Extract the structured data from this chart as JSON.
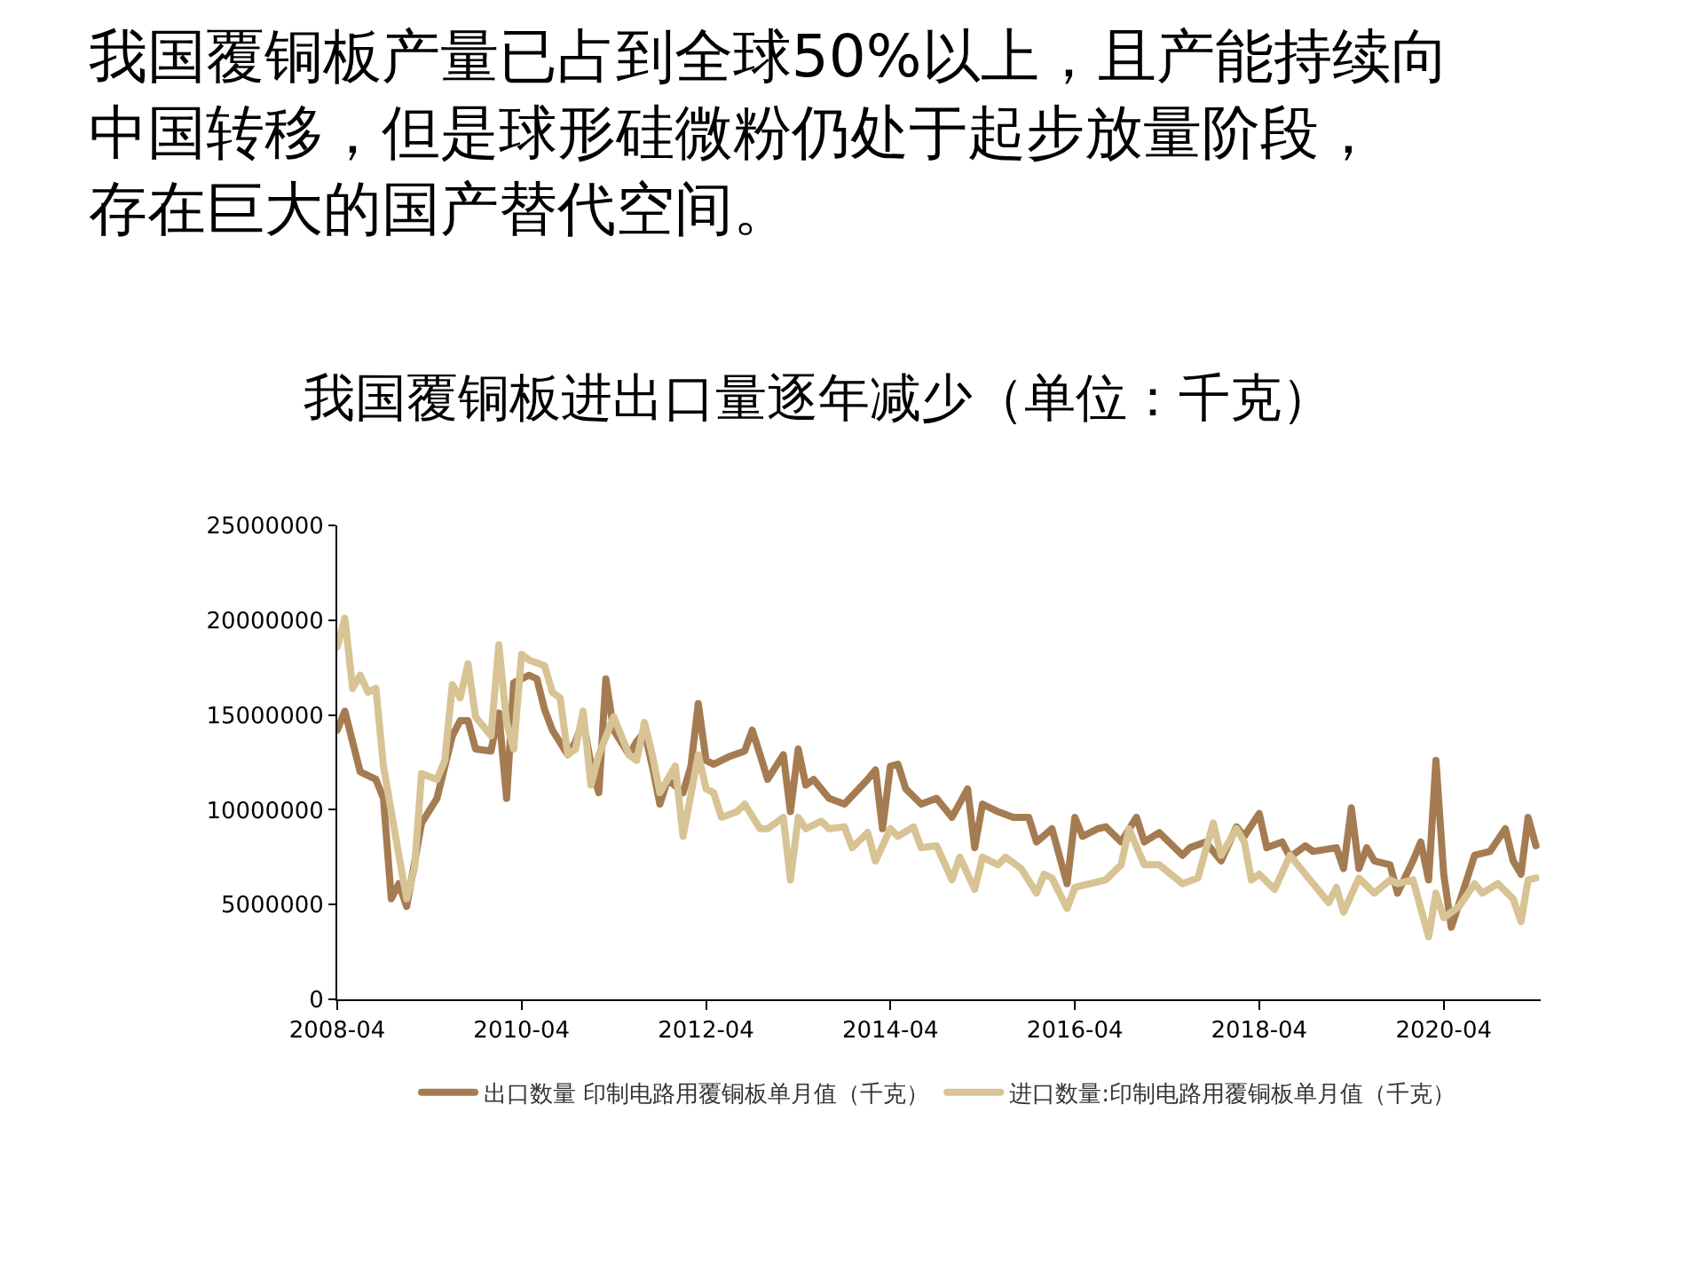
{
  "chart_data": {
    "type": "line",
    "title": "我国覆铜板产量已占到全球50%以上，且产能持续向中国转移，但是球形硅微粉仍处于起步放量阶段，存在巨大的国产替代空间。",
    "subtitle": "我国覆铜板进出口量逐年减少（单位：千克）",
    "series": [
      {
        "name": "出口数量 印制电路用覆铜板单月值（千克）",
        "color": "#a57c52",
        "x": [
          "2008-04",
          "2008-05",
          "2008-07",
          "2008-09",
          "2008-10",
          "2008-11",
          "2008-12",
          "2009-01",
          "2009-03",
          "2009-05",
          "2009-07",
          "2009-08",
          "2009-09",
          "2009-10",
          "2009-12",
          "2010-01",
          "2010-02",
          "2010-03",
          "2010-05",
          "2010-06",
          "2010-07",
          "2010-08",
          "2010-10",
          "2010-11",
          "2010-12",
          "2011-01",
          "2011-02",
          "2011-03",
          "2011-04",
          "2011-06",
          "2011-07",
          "2011-08",
          "2011-09",
          "2011-10",
          "2011-11",
          "2012-01",
          "2012-02",
          "2012-03",
          "2012-04",
          "2012-05",
          "2012-07",
          "2012-09",
          "2012-10",
          "2012-11",
          "2012-12",
          "2013-02",
          "2013-03",
          "2013-04",
          "2013-05",
          "2013-06",
          "2013-08",
          "2013-10",
          "2014-01",
          "2014-02",
          "2014-03",
          "2014-04",
          "2014-05",
          "2014-06",
          "2014-08",
          "2014-10",
          "2014-12",
          "2015-02",
          "2015-03",
          "2015-04",
          "2015-06",
          "2015-08",
          "2015-10",
          "2015-11",
          "2016-01",
          "2016-03",
          "2016-04",
          "2016-05",
          "2016-07",
          "2016-08",
          "2016-10",
          "2016-12",
          "2017-01",
          "2017-03",
          "2017-06",
          "2017-07",
          "2017-09",
          "2017-11",
          "2018-01",
          "2018-02",
          "2018-04",
          "2018-05",
          "2018-07",
          "2018-08",
          "2018-10",
          "2018-11",
          "2019-02",
          "2019-03",
          "2019-04",
          "2019-05",
          "2019-06",
          "2019-07",
          "2019-09",
          "2019-10",
          "2019-12",
          "2020-01",
          "2020-02",
          "2020-03",
          "2020-04",
          "2020-05",
          "2020-07",
          "2020-08",
          "2020-10",
          "2020-12",
          "2021-01",
          "2021-02",
          "2021-03",
          "2021-04"
        ],
        "values": [
          14200000,
          15200000,
          12000000,
          11600000,
          10600000,
          5300000,
          6100000,
          4900000,
          9300000,
          10600000,
          13900000,
          14700000,
          14700000,
          13200000,
          13100000,
          15100000,
          10600000,
          16700000,
          17100000,
          16900000,
          15300000,
          14200000,
          12900000,
          13600000,
          14700000,
          12400000,
          10900000,
          16900000,
          14200000,
          12900000,
          13600000,
          14100000,
          12300000,
          10300000,
          11600000,
          10900000,
          12300000,
          15600000,
          12600000,
          12400000,
          12800000,
          13100000,
          14200000,
          12900000,
          11600000,
          12900000,
          9900000,
          13200000,
          11300000,
          11600000,
          10600000,
          10300000,
          11600000,
          12100000,
          9000000,
          12300000,
          12400000,
          11100000,
          10300000,
          10600000,
          9600000,
          11100000,
          8000000,
          10300000,
          9900000,
          9600000,
          9600000,
          8300000,
          9000000,
          6100000,
          9600000,
          8600000,
          9000000,
          9100000,
          8300000,
          9600000,
          8300000,
          8800000,
          7600000,
          8000000,
          8300000,
          7300000,
          9100000,
          8600000,
          9800000,
          8000000,
          8300000,
          7500000,
          8100000,
          7800000,
          8000000,
          6900000,
          10100000,
          6900000,
          8000000,
          7300000,
          7100000,
          5600000,
          7300000,
          8300000,
          6300000,
          12600000,
          6600000,
          3800000,
          6300000,
          7600000,
          7800000,
          9000000,
          7300000,
          6600000,
          9600000,
          8100000
        ]
      },
      {
        "name": "进口数量:印制电路用覆铜板单月值（千克）",
        "color": "#d8c394",
        "x": [
          "2008-04",
          "2008-05",
          "2008-06",
          "2008-07",
          "2008-08",
          "2008-09",
          "2008-10",
          "2008-12",
          "2009-01",
          "2009-02",
          "2009-03",
          "2009-05",
          "2009-06",
          "2009-07",
          "2009-08",
          "2009-09",
          "2009-10",
          "2009-12",
          "2010-01",
          "2010-02",
          "2010-03",
          "2010-04",
          "2010-05",
          "2010-07",
          "2010-08",
          "2010-09",
          "2010-10",
          "2010-11",
          "2010-12",
          "2011-01",
          "2011-02",
          "2011-04",
          "2011-06",
          "2011-07",
          "2011-08",
          "2011-09",
          "2011-10",
          "2011-12",
          "2012-01",
          "2012-03",
          "2012-04",
          "2012-05",
          "2012-06",
          "2012-08",
          "2012-09",
          "2012-11",
          "2012-12",
          "2013-02",
          "2013-03",
          "2013-04",
          "2013-05",
          "2013-07",
          "2013-08",
          "2013-10",
          "2013-11",
          "2014-01",
          "2014-02",
          "2014-04",
          "2014-05",
          "2014-07",
          "2014-08",
          "2014-10",
          "2014-12",
          "2015-01",
          "2015-03",
          "2015-04",
          "2015-06",
          "2015-07",
          "2015-09",
          "2015-11",
          "2015-12",
          "2016-01",
          "2016-03",
          "2016-04",
          "2016-06",
          "2016-08",
          "2016-10",
          "2016-11",
          "2017-01",
          "2017-03",
          "2017-06",
          "2017-08",
          "2017-10",
          "2017-11",
          "2018-01",
          "2018-02",
          "2018-03",
          "2018-04",
          "2018-06",
          "2018-08",
          "2018-10",
          "2018-11",
          "2019-01",
          "2019-02",
          "2019-03",
          "2019-05",
          "2019-07",
          "2019-09",
          "2019-10",
          "2019-12",
          "2020-02",
          "2020-03",
          "2020-04",
          "2020-06",
          "2020-08",
          "2020-09",
          "2020-11",
          "2021-01",
          "2021-02",
          "2021-03",
          "2021-04"
        ],
        "values": [
          18600000,
          20100000,
          16400000,
          17100000,
          16200000,
          16400000,
          12300000,
          7600000,
          5300000,
          6900000,
          11900000,
          11600000,
          12600000,
          16600000,
          15900000,
          17700000,
          14900000,
          13900000,
          18700000,
          14600000,
          13200000,
          18200000,
          17900000,
          17600000,
          16200000,
          15900000,
          12900000,
          13200000,
          15200000,
          11300000,
          12900000,
          14900000,
          12900000,
          12600000,
          14600000,
          12900000,
          10900000,
          12300000,
          8600000,
          12900000,
          11100000,
          10900000,
          9600000,
          9900000,
          10300000,
          9000000,
          9000000,
          9600000,
          6300000,
          9600000,
          9000000,
          9400000,
          9000000,
          9100000,
          8000000,
          8800000,
          7300000,
          9000000,
          8600000,
          9100000,
          8000000,
          8100000,
          6300000,
          7500000,
          5800000,
          7500000,
          7100000,
          7500000,
          6900000,
          5600000,
          6600000,
          6400000,
          4800000,
          5900000,
          6100000,
          6300000,
          7100000,
          9000000,
          7100000,
          7100000,
          6100000,
          6400000,
          9300000,
          7600000,
          9000000,
          8300000,
          6300000,
          6600000,
          5800000,
          7600000,
          6600000,
          6100000,
          5100000,
          5900000,
          4600000,
          6400000,
          5600000,
          6300000,
          6100000,
          6300000,
          3300000,
          5600000,
          4300000,
          4900000,
          6100000,
          5600000,
          6100000,
          5300000,
          4100000,
          6300000,
          6400000
        ]
      }
    ],
    "xlim": [
      "2008-04",
      "2021-04-20"
    ],
    "xticks": [
      "2008-04",
      "2010-04",
      "2012-04",
      "2014-04",
      "2016-04",
      "2018-04",
      "2020-04"
    ],
    "ylim": [
      0,
      25000000
    ],
    "yticks": [
      0,
      5000000,
      10000000,
      15000000,
      20000000,
      25000000
    ],
    "legend": "bottom",
    "marker": "none",
    "line_style": "solid"
  }
}
